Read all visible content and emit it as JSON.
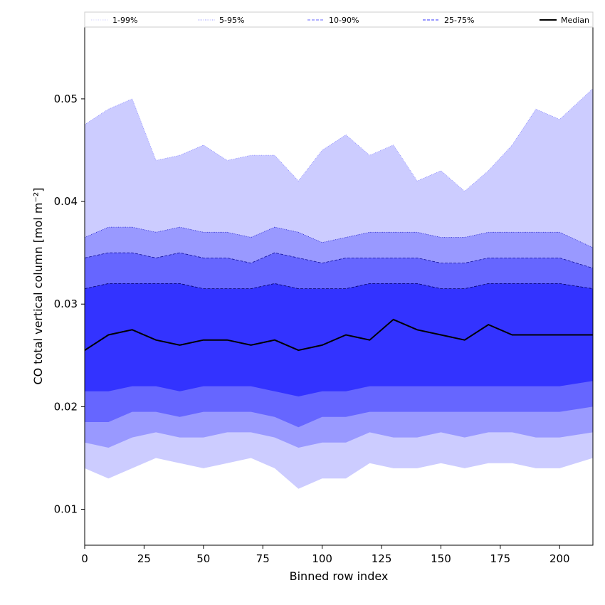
{
  "chart_data": {
    "type": "area",
    "xlabel": "Binned row index",
    "ylabel": "CO total vertical column [mol m⁻²]",
    "xlim": [
      0,
      214
    ],
    "ylim": [
      0.0065,
      0.057
    ],
    "xticks": [
      0,
      25,
      50,
      75,
      100,
      125,
      150,
      175,
      200
    ],
    "yticks": [
      0.01,
      0.02,
      0.03,
      0.04,
      0.05
    ],
    "ytick_labels": [
      "0.01",
      "0.02",
      "0.03",
      "0.04",
      "0.05"
    ],
    "grid": false,
    "legend_position": "top (full width, above plot)",
    "legend": [
      {
        "label": "1-99%",
        "color": "#ccccff",
        "style": "dotted"
      },
      {
        "label": "5-95%",
        "color": "#9999ff",
        "style": "dotted"
      },
      {
        "label": "10-90%",
        "color": "#6666ff",
        "style": "dashed"
      },
      {
        "label": "25-75%",
        "color": "#3333ff",
        "style": "dashed"
      },
      {
        "label": "Median",
        "color": "#000000",
        "style": "solid"
      }
    ],
    "x": [
      0,
      10,
      20,
      30,
      40,
      50,
      60,
      70,
      80,
      90,
      100,
      110,
      120,
      130,
      140,
      150,
      160,
      170,
      180,
      190,
      200,
      214
    ],
    "series": [
      {
        "name": "1-99%",
        "lower": [
          0.014,
          0.013,
          0.014,
          0.015,
          0.0145,
          0.014,
          0.0145,
          0.015,
          0.014,
          0.012,
          0.013,
          0.013,
          0.0145,
          0.014,
          0.014,
          0.0145,
          0.014,
          0.0145,
          0.0145,
          0.014,
          0.014,
          0.015
        ],
        "upper": [
          0.0475,
          0.049,
          0.05,
          0.044,
          0.0445,
          0.0455,
          0.044,
          0.0445,
          0.0445,
          0.042,
          0.045,
          0.0465,
          0.0445,
          0.0455,
          0.042,
          0.043,
          0.041,
          0.043,
          0.0455,
          0.049,
          0.048,
          0.051
        ]
      },
      {
        "name": "5-95%",
        "lower": [
          0.0165,
          0.016,
          0.017,
          0.0175,
          0.017,
          0.017,
          0.0175,
          0.0175,
          0.017,
          0.016,
          0.0165,
          0.0165,
          0.0175,
          0.017,
          0.017,
          0.0175,
          0.017,
          0.0175,
          0.0175,
          0.017,
          0.017,
          0.0175
        ],
        "upper": [
          0.0365,
          0.0375,
          0.0375,
          0.037,
          0.0375,
          0.037,
          0.037,
          0.0365,
          0.0375,
          0.037,
          0.036,
          0.0365,
          0.037,
          0.037,
          0.037,
          0.0365,
          0.0365,
          0.037,
          0.037,
          0.037,
          0.037,
          0.0355
        ]
      },
      {
        "name": "10-90%",
        "lower": [
          0.0185,
          0.0185,
          0.0195,
          0.0195,
          0.019,
          0.0195,
          0.0195,
          0.0195,
          0.019,
          0.018,
          0.019,
          0.019,
          0.0195,
          0.0195,
          0.0195,
          0.0195,
          0.0195,
          0.0195,
          0.0195,
          0.0195,
          0.0195,
          0.02
        ],
        "upper": [
          0.0345,
          0.035,
          0.035,
          0.0345,
          0.035,
          0.0345,
          0.0345,
          0.034,
          0.035,
          0.0345,
          0.034,
          0.0345,
          0.0345,
          0.0345,
          0.0345,
          0.034,
          0.034,
          0.0345,
          0.0345,
          0.0345,
          0.0345,
          0.0335
        ]
      },
      {
        "name": "25-75%",
        "lower": [
          0.0215,
          0.0215,
          0.022,
          0.022,
          0.0215,
          0.022,
          0.022,
          0.022,
          0.0215,
          0.021,
          0.0215,
          0.0215,
          0.022,
          0.022,
          0.022,
          0.022,
          0.022,
          0.022,
          0.022,
          0.022,
          0.022,
          0.0225
        ],
        "upper": [
          0.0315,
          0.032,
          0.032,
          0.032,
          0.032,
          0.0315,
          0.0315,
          0.0315,
          0.032,
          0.0315,
          0.0315,
          0.0315,
          0.032,
          0.032,
          0.032,
          0.0315,
          0.0315,
          0.032,
          0.032,
          0.032,
          0.032,
          0.0315
        ]
      },
      {
        "name": "Median",
        "values": [
          0.0255,
          0.027,
          0.0275,
          0.0265,
          0.026,
          0.0265,
          0.0265,
          0.026,
          0.0265,
          0.0255,
          0.026,
          0.027,
          0.0265,
          0.0285,
          0.0275,
          0.027,
          0.0265,
          0.028,
          0.027,
          0.027,
          0.027,
          0.027
        ]
      }
    ]
  }
}
